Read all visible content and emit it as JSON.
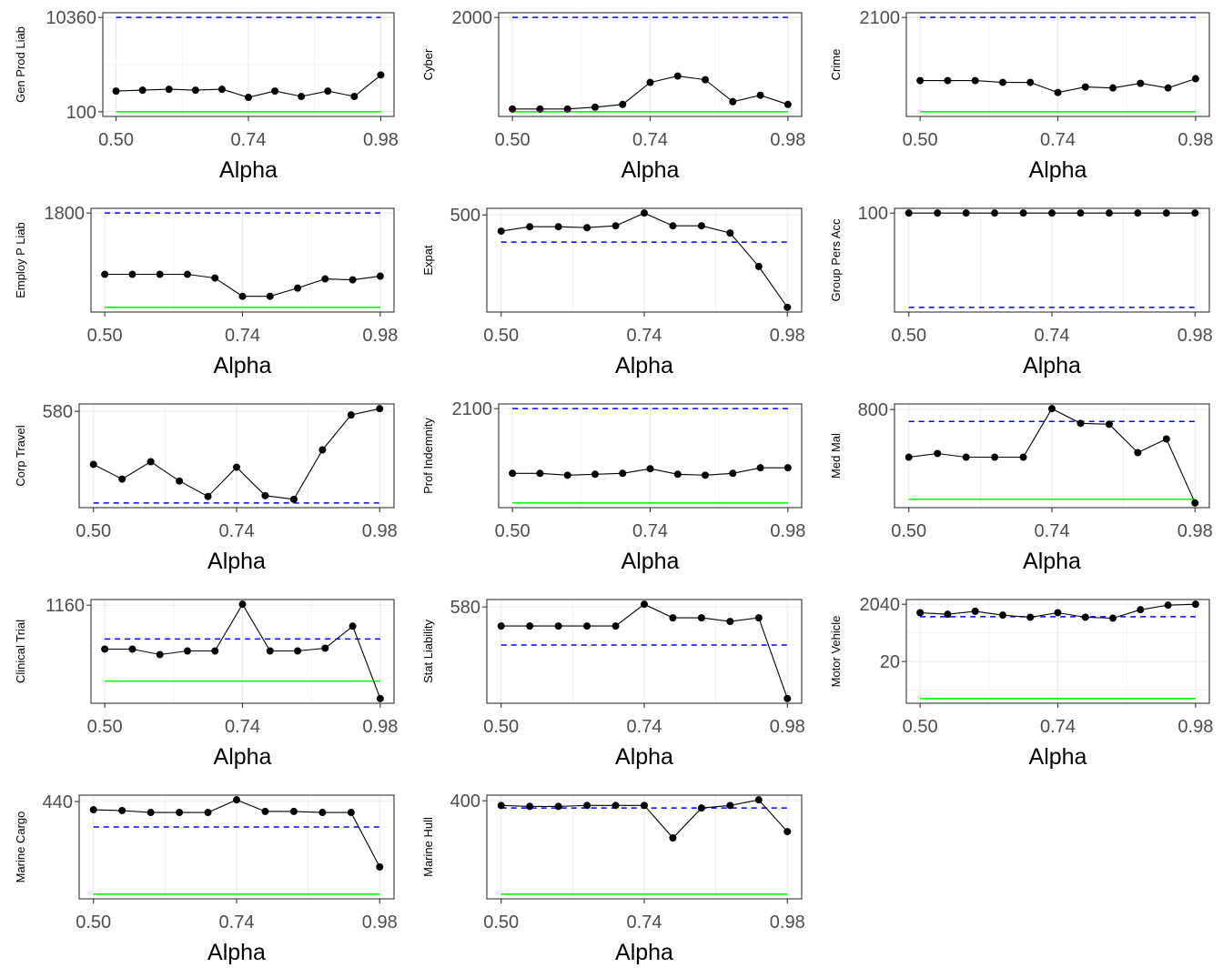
{
  "chart_data": [
    {
      "type": "line",
      "title": "",
      "xlabel": "Alpha",
      "ylabel": "Gen Prod Liab",
      "scale": "linear",
      "yticks": [
        100,
        10360
      ],
      "blue_dashed": 10360,
      "green": 100,
      "values": [
        2347,
        2445,
        2543,
        2445,
        2543,
        1663,
        2347,
        1761,
        2347,
        1761,
        4106
      ]
    },
    {
      "type": "line",
      "title": "",
      "xlabel": "Alpha",
      "ylabel": "Cyber",
      "scale": "linear",
      "yticks": [
        2000
      ],
      "blue_dashed": 2000,
      "green": 0,
      "values": [
        58,
        58,
        58,
        97,
        155,
        621,
        757,
        679,
        213,
        349,
        155
      ]
    },
    {
      "type": "line",
      "title": "",
      "xlabel": "Alpha",
      "ylabel": "Crime",
      "scale": "linear",
      "yticks": [
        2100
      ],
      "blue_dashed": 2100,
      "green": 0,
      "values": [
        694,
        694,
        694,
        653,
        653,
        428,
        551,
        530,
        632,
        530,
        735
      ]
    },
    {
      "type": "line",
      "title": "",
      "xlabel": "Alpha",
      "ylabel": "Employ P Liab",
      "scale": "linear",
      "yticks": [
        1800
      ],
      "blue_dashed": 1800,
      "green": 0,
      "values": [
        630,
        630,
        630,
        630,
        560,
        210,
        210,
        368,
        543,
        525,
        595
      ]
    },
    {
      "type": "line",
      "title": "",
      "xlabel": "Alpha",
      "ylabel": "Expat",
      "scale": "linear",
      "yticks": [
        500
      ],
      "blue_dashed": 353,
      "green": null,
      "values": [
        412,
        436,
        436,
        431,
        441,
        510,
        441,
        441,
        402,
        221,
        0
      ]
    },
    {
      "type": "line",
      "title": "",
      "xlabel": "Alpha",
      "ylabel": "Group Pers Acc",
      "scale": "linear",
      "yticks": [
        100
      ],
      "blue_dashed": 0,
      "green": null,
      "values": [
        100,
        100,
        100,
        100,
        100,
        100,
        100,
        100,
        100,
        100,
        100
      ]
    },
    {
      "type": "line",
      "title": "",
      "xlabel": "Alpha",
      "ylabel": "Corp Travel",
      "scale": "linear",
      "yticks": [
        580
      ],
      "blue_dashed": 0,
      "green": null,
      "values": [
        244,
        151,
        261,
        139,
        41,
        226,
        46,
        23,
        336,
        557,
        597
      ]
    },
    {
      "type": "line",
      "title": "",
      "xlabel": "Alpha",
      "ylabel": "Prof Indemnity",
      "scale": "linear",
      "yticks": [
        2100
      ],
      "blue_dashed": 2100,
      "green": 0,
      "values": [
        659,
        659,
        618,
        639,
        659,
        762,
        639,
        618,
        659,
        783,
        783
      ]
    },
    {
      "type": "line",
      "title": "",
      "xlabel": "Alpha",
      "ylabel": "Med Mal",
      "scale": "linear",
      "yticks": [
        800
      ],
      "blue_dashed": 694,
      "green": 0,
      "values": [
        375,
        408,
        375,
        375,
        375,
        808,
        677,
        669,
        416,
        538,
        -33
      ]
    },
    {
      "type": "line",
      "title": "",
      "xlabel": "Alpha",
      "ylabel": "Clinical Trial",
      "scale": "linear",
      "yticks": [
        1160
      ],
      "blue_dashed": 643,
      "green": 0,
      "values": [
        489,
        489,
        405,
        461,
        461,
        1174,
        461,
        461,
        503,
        839,
        -266
      ]
    },
    {
      "type": "line",
      "title": "",
      "xlabel": "Alpha",
      "ylabel": "Stat Liability",
      "scale": "linear",
      "yticks": [
        580
      ],
      "blue_dashed": 339,
      "green": null,
      "values": [
        459,
        459,
        459,
        459,
        459,
        597,
        511,
        511,
        488,
        511,
        0
      ]
    },
    {
      "type": "line",
      "title": "",
      "xlabel": "Alpha",
      "ylabel": "Motor Vehicle",
      "scale": "log",
      "yticks": [
        20,
        2040
      ],
      "blue_dashed": 746,
      "green": 1,
      "values": [
        1031,
        910,
        1159,
        845,
        714,
        1031,
        714,
        663,
        1314,
        1895,
        2040
      ]
    },
    {
      "type": "line",
      "title": "",
      "xlabel": "Alpha",
      "ylabel": "Marine Cargo",
      "scale": "linear",
      "yticks": [
        440
      ],
      "blue_dashed": 319,
      "green": 0,
      "values": [
        401,
        397,
        388,
        388,
        388,
        448,
        393,
        393,
        388,
        388,
        129
      ]
    },
    {
      "type": "line",
      "title": "",
      "xlabel": "Alpha",
      "ylabel": "Marine Hull",
      "scale": "linear",
      "yticks": [
        400
      ],
      "blue_dashed": 369,
      "green": 0,
      "values": [
        380,
        376,
        376,
        380,
        380,
        380,
        241,
        369,
        380,
        404,
        268
      ]
    }
  ],
  "x": [
    0.5,
    0.548,
    0.596,
    0.644,
    0.692,
    0.74,
    0.788,
    0.836,
    0.884,
    0.932,
    0.98
  ],
  "xticks": [
    0.5,
    0.74,
    0.98
  ],
  "xtick_labels": [
    "0.50",
    "0.74",
    "0.98"
  ],
  "xlim": [
    0.5,
    0.98
  ],
  "grid": true,
  "colors": {
    "series": "#000000",
    "blue_dashed": "#0000ff",
    "green": "#00ff00",
    "grid": "#ebebeb",
    "border": "#333333"
  }
}
